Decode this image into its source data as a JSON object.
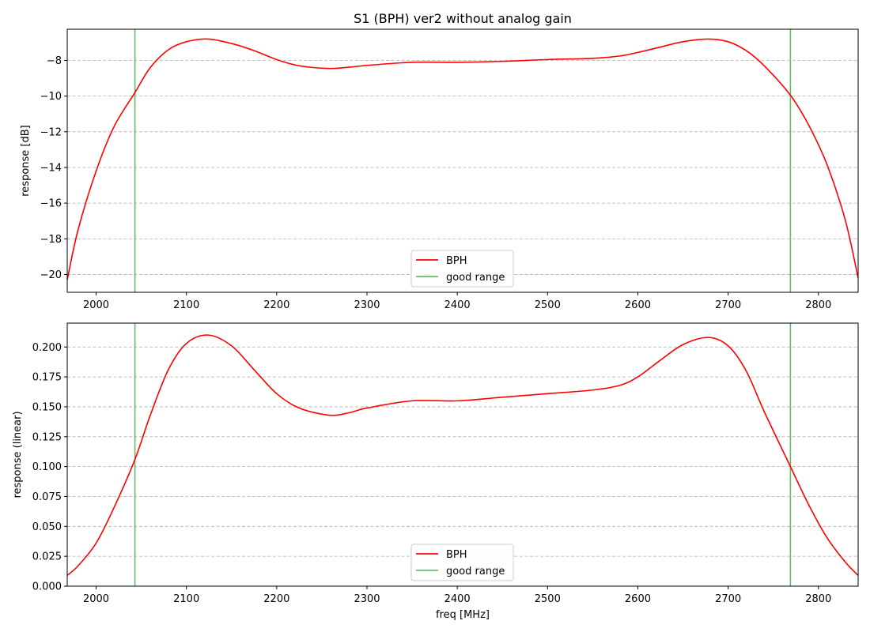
{
  "figure_title": "S1 (BPH)   ver2   without analog gain",
  "chart_data": [
    {
      "type": "line",
      "title": "S1 (BPH)   ver2   without analog gain",
      "xlabel": "",
      "ylabel": "response [dB]",
      "xlim": [
        1968,
        2844
      ],
      "ylim": [
        -21.0,
        -6.25
      ],
      "xticks": [
        2000,
        2100,
        2200,
        2300,
        2400,
        2500,
        2600,
        2700,
        2800
      ],
      "yticks": [
        -20,
        -18,
        -16,
        -14,
        -12,
        -10,
        -8
      ],
      "grid": "horizontal dashed",
      "legend_position": "bottom-center",
      "series": [
        {
          "name": "BPH",
          "color": "#ff0000",
          "x": [
            1968,
            1980,
            2000,
            2020,
            2043,
            2060,
            2080,
            2100,
            2124,
            2150,
            2175,
            2200,
            2225,
            2258,
            2280,
            2300,
            2350,
            2400,
            2450,
            2500,
            2550,
            2580,
            2600,
            2625,
            2650,
            2678,
            2700,
            2720,
            2740,
            2769,
            2790,
            2810,
            2830,
            2844
          ],
          "y": [
            -20.3,
            -17.5,
            -14.2,
            -11.7,
            -9.8,
            -8.4,
            -7.4,
            -6.95,
            -6.8,
            -7.05,
            -7.45,
            -7.95,
            -8.3,
            -8.45,
            -8.38,
            -8.28,
            -8.1,
            -8.1,
            -8.05,
            -7.95,
            -7.88,
            -7.75,
            -7.55,
            -7.25,
            -6.95,
            -6.8,
            -6.95,
            -7.45,
            -8.3,
            -9.95,
            -11.7,
            -13.9,
            -17.0,
            -20.2
          ]
        }
      ],
      "vlines": {
        "name": "good range",
        "color": "#66bb66",
        "x": [
          2043,
          2769
        ]
      }
    },
    {
      "type": "line",
      "title": "",
      "xlabel": "freq [MHz]",
      "ylabel": "response (linear)",
      "xlim": [
        1968,
        2844
      ],
      "ylim": [
        0.0,
        0.22
      ],
      "xticks": [
        2000,
        2100,
        2200,
        2300,
        2400,
        2500,
        2600,
        2700,
        2800
      ],
      "yticks": [
        "0.000",
        "0.025",
        "0.050",
        "0.075",
        "0.100",
        "0.125",
        "0.150",
        "0.175",
        "0.200"
      ],
      "grid": "horizontal dashed",
      "legend_position": "bottom-center",
      "series": [
        {
          "name": "BPH",
          "color": "#ff0000",
          "x": [
            1968,
            1980,
            2000,
            2020,
            2043,
            2060,
            2080,
            2100,
            2124,
            2150,
            2175,
            2200,
            2225,
            2258,
            2280,
            2300,
            2350,
            2400,
            2450,
            2500,
            2550,
            2580,
            2600,
            2625,
            2650,
            2678,
            2700,
            2720,
            2740,
            2769,
            2790,
            2810,
            2830,
            2844
          ],
          "y": [
            0.009,
            0.017,
            0.036,
            0.066,
            0.106,
            0.143,
            0.181,
            0.203,
            0.21,
            0.201,
            0.181,
            0.161,
            0.149,
            0.143,
            0.145,
            0.149,
            0.155,
            0.155,
            0.158,
            0.161,
            0.164,
            0.168,
            0.175,
            0.189,
            0.202,
            0.208,
            0.201,
            0.18,
            0.146,
            0.1,
            0.067,
            0.04,
            0.02,
            0.009
          ]
        }
      ],
      "vlines": {
        "name": "good range",
        "color": "#66bb66",
        "x": [
          2043,
          2769
        ]
      }
    }
  ]
}
